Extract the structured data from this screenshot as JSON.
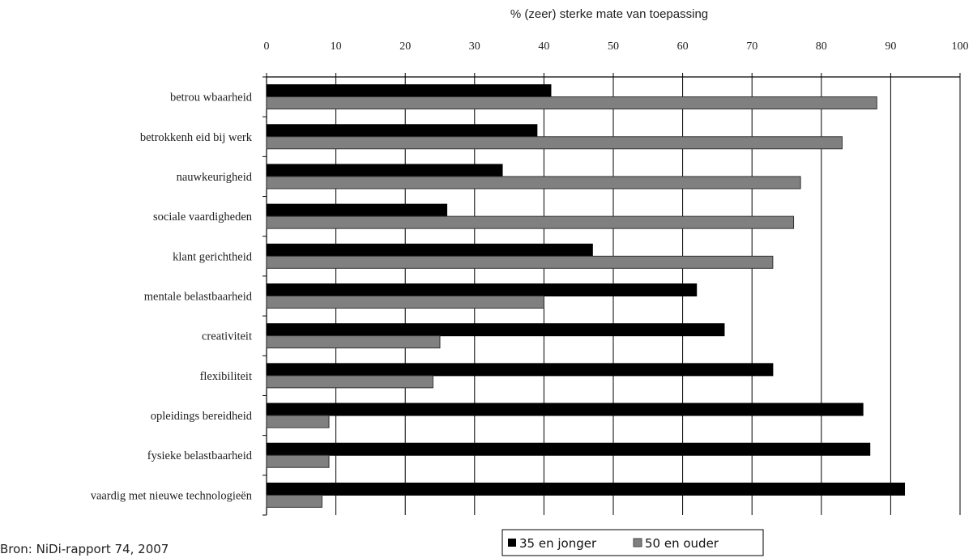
{
  "chart_data": {
    "type": "bar",
    "orientation": "horizontal",
    "title": "% (zeer) sterke mate van toepassing",
    "categories": [
      "betrou wbaarheid",
      "betrokkenh eid bij werk",
      "nauwkeurigheid",
      "sociale vaardigheden",
      "klant gerichtheid",
      "mentale belastbaarheid",
      "creativiteit",
      "flexibiliteit",
      "opleidings bereidheid",
      "fysieke belastbaarheid",
      "vaardig met nieuwe technologieën"
    ],
    "series": [
      {
        "name": "35 en jonger",
        "color": "#000000",
        "values": [
          41,
          39,
          34,
          26,
          47,
          62,
          66,
          73,
          86,
          87,
          92
        ]
      },
      {
        "name": "50 en ouder",
        "color": "#808080",
        "values": [
          88,
          83,
          77,
          76,
          73,
          40,
          25,
          24,
          9,
          9,
          8
        ]
      }
    ],
    "xlim": [
      0,
      100
    ],
    "xticks": [
      "0",
      "10",
      "20",
      "30",
      "40",
      "50",
      "60",
      "70",
      "80",
      "90",
      "100"
    ],
    "grid": "vertical",
    "legend_position": "bottom"
  },
  "source": "Bron: NiDi-rapport 74, 2007"
}
